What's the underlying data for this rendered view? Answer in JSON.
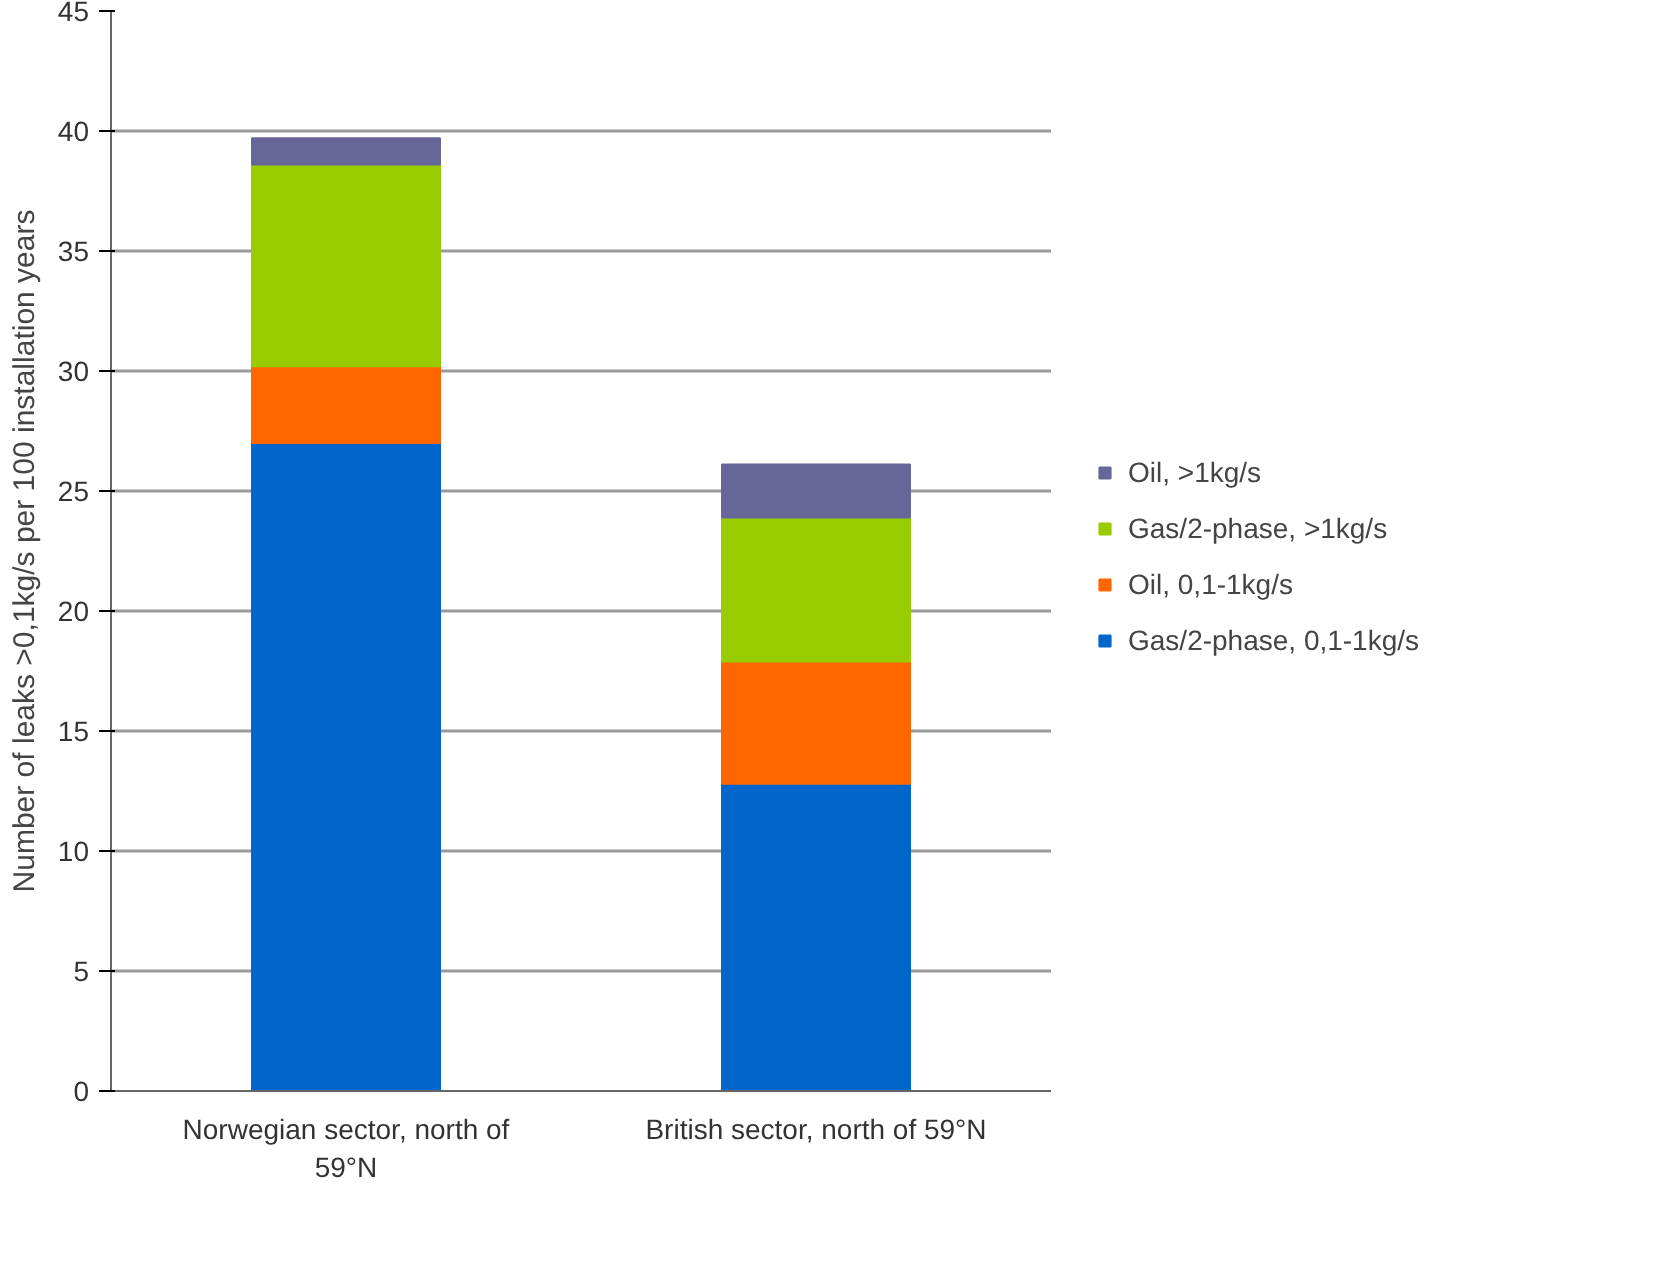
{
  "chart_data": {
    "type": "bar",
    "stacked": true,
    "categories": [
      "Norwegian sector, north of 59°N",
      "British sector, north of 59°N"
    ],
    "ylabel": "Number of leaks >0,1kg/s per 100 installation years",
    "ylim": [
      0,
      45
    ],
    "yticks": [
      0,
      5,
      10,
      15,
      20,
      25,
      30,
      35,
      40,
      45
    ],
    "grid": "y",
    "legend": "right",
    "series": [
      {
        "name": "Gas/2-phase, 0,1-1kg/s",
        "color": "#0066cc",
        "values": [
          27.0,
          12.8
        ]
      },
      {
        "name": "Oil, 0,1-1kg/s",
        "color": "#ff6600",
        "values": [
          3.2,
          5.1
        ]
      },
      {
        "name": "Gas/2-phase, >1kg/s",
        "color": "#99cc00",
        "values": [
          8.4,
          6.0
        ]
      },
      {
        "name": "Oil, >1kg/s",
        "color": "#666699",
        "values": [
          1.1,
          2.2
        ]
      }
    ]
  }
}
